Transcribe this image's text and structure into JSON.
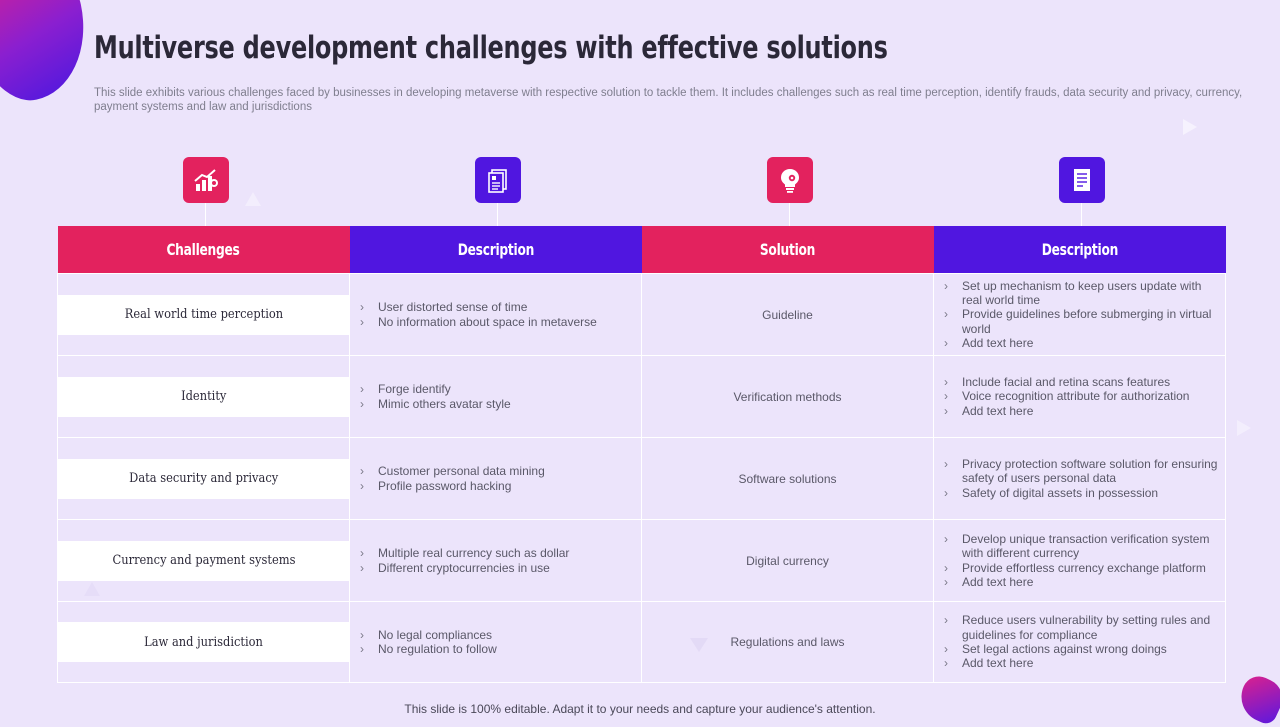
{
  "title": "Multiverse development challenges with effective solutions",
  "subtitle": "This slide exhibits various challenges faced by businesses in developing metaverse with respective solution to tackle them. It includes challenges such as real time perception, identify frauds, data security and privacy, currency, payment systems and law and jurisdictions",
  "colors": {
    "pink": "#e3225e",
    "purple": "#5016e0",
    "background": "#ece4fb"
  },
  "icons": [
    "growth-chart-icon",
    "document-icon",
    "lightbulb-gear-icon",
    "checklist-icon"
  ],
  "headers": [
    "Challenges",
    "Description",
    "Solution",
    "Description"
  ],
  "rows": [
    {
      "challenge": "Real world time perception",
      "description": [
        "User distorted sense of time",
        "No information about space in metaverse"
      ],
      "solution": "Guideline",
      "solution_description": [
        "Set up mechanism to keep users update with real world time",
        "Provide guidelines before submerging in virtual world",
        "Add text here"
      ]
    },
    {
      "challenge": "Identity",
      "description": [
        "Forge identify",
        "Mimic others avatar style"
      ],
      "solution": "Verification methods",
      "solution_description": [
        "Include facial and retina scans features",
        "Voice recognition attribute for authorization",
        "Add text here"
      ]
    },
    {
      "challenge": "Data security and privacy",
      "description": [
        "Customer personal data mining",
        "Profile password hacking"
      ],
      "solution": "Software solutions",
      "solution_description": [
        "Privacy protection software solution for ensuring safety of users personal data",
        "Safety of digital assets in possession"
      ]
    },
    {
      "challenge": "Currency and payment systems",
      "description": [
        "Multiple real currency such as dollar",
        "Different cryptocurrencies in use"
      ],
      "solution": "Digital currency",
      "solution_description": [
        "Develop unique transaction verification system with different currency",
        "Provide effortless currency exchange platform",
        "Add text here"
      ]
    },
    {
      "challenge": "Law and jurisdiction",
      "description": [
        "No legal compliances",
        "No regulation to follow"
      ],
      "solution": "Regulations and laws",
      "solution_description": [
        "Reduce users vulnerability by setting rules and guidelines for compliance",
        "Set legal actions against wrong doings",
        "Add text here"
      ]
    }
  ],
  "footer": "This slide is 100% editable. Adapt it to your needs and capture your audience's attention."
}
